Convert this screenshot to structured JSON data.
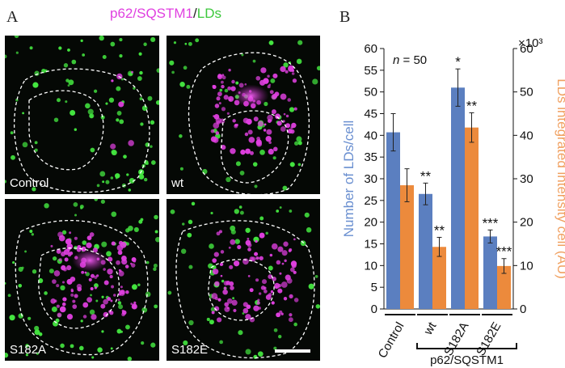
{
  "figure": {
    "panel_a_letter": "A",
    "panel_b_letter": "B",
    "title_marker": "p62/SQSTM1",
    "title_separator": "/",
    "title_lds": "LDs",
    "images": [
      {
        "label": "Control"
      },
      {
        "label": "wt"
      },
      {
        "label": "S182A"
      },
      {
        "label": "S182E"
      }
    ],
    "colors": {
      "magenta": "#e040e0",
      "green": "#44e640",
      "blue_bar": "#5b7fc0",
      "orange_bar": "#ec8a3c",
      "left_axis_label": "#6a8fd0",
      "right_axis_label": "#f0a060"
    }
  },
  "chart_data": {
    "type": "bar",
    "annotation": "n = 50",
    "annotation_n": "n",
    "annotation_rest": " = 50",
    "categories": [
      "Control",
      "wt",
      "S182A",
      "S182E"
    ],
    "group_label": "p62/SQSTM1",
    "ylabel": "Number of LDs/cell",
    "ylabel2": "LDs integrated intensity cell (AU)",
    "y2_multiplier": "×10³",
    "ylim": [
      0,
      60
    ],
    "y2lim": [
      0,
      60
    ],
    "yticks": [
      0,
      5,
      10,
      15,
      20,
      25,
      30,
      35,
      40,
      45,
      50,
      55,
      60
    ],
    "y2ticks": [
      0,
      10,
      20,
      30,
      40,
      50,
      60
    ],
    "series": [
      {
        "name": "Number of LDs/cell",
        "axis": "left",
        "values": [
          40.7,
          26.5,
          51.0,
          16.7
        ],
        "errors": [
          4.3,
          2.5,
          4.3,
          1.5
        ],
        "stars": [
          "",
          "**",
          "*",
          "***"
        ]
      },
      {
        "name": "LDs integrated intensity cell (AU)",
        "axis": "right",
        "values": [
          28.5,
          14.3,
          41.8,
          9.9
        ],
        "errors": [
          3.8,
          2.2,
          3.4,
          1.7
        ],
        "stars": [
          "",
          "**",
          "**",
          "***"
        ]
      }
    ]
  }
}
